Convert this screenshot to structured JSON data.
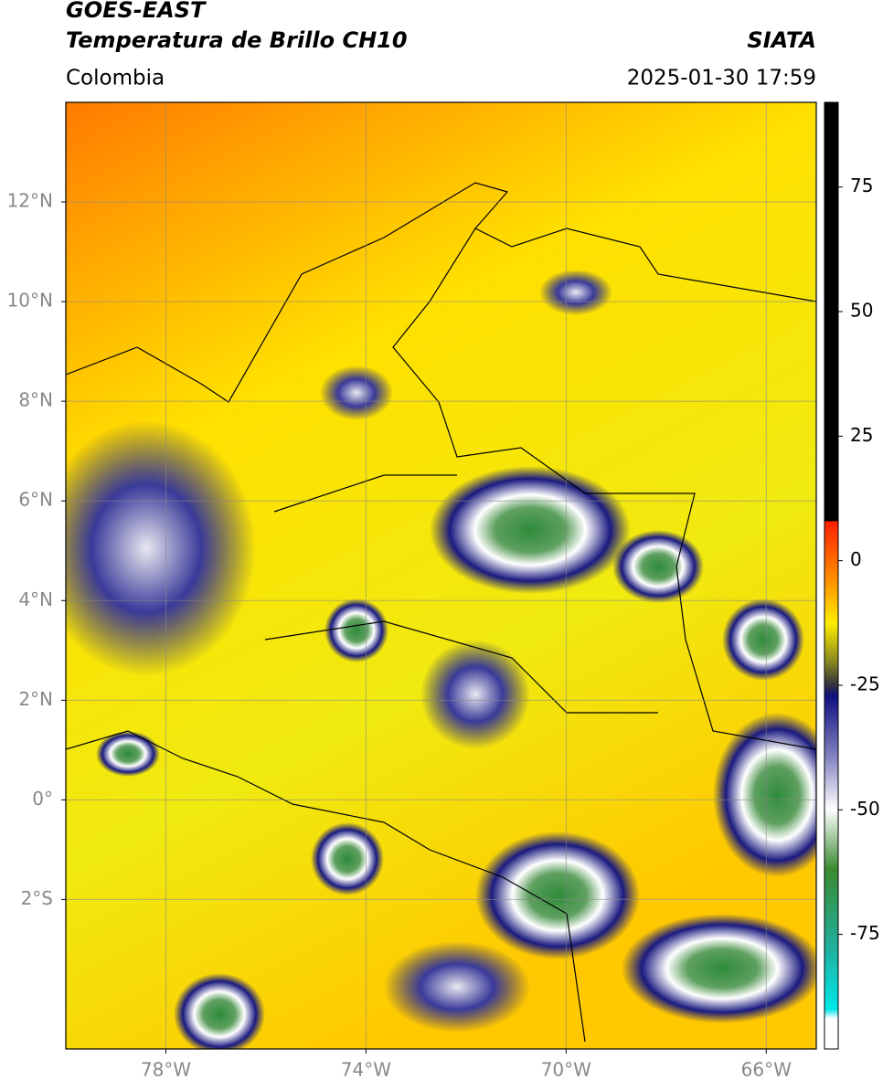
{
  "title": "GOES-EAST",
  "subtitle": "Temperatura de Brillo CH10",
  "source": "SIATA",
  "region": "Colombia",
  "datetime": "2025-01-30 17:59",
  "map": {
    "xlim": [
      -80,
      -65
    ],
    "ylim": [
      -5,
      14
    ],
    "grid": true,
    "xticks": [
      {
        "value": -78,
        "label": "78°W"
      },
      {
        "value": -74,
        "label": "74°W"
      },
      {
        "value": -70,
        "label": "70°W"
      },
      {
        "value": -66,
        "label": "66°W"
      }
    ],
    "yticks": [
      {
        "value": 12,
        "label": "12°N"
      },
      {
        "value": 10,
        "label": "10°N"
      },
      {
        "value": 8,
        "label": "8°N"
      },
      {
        "value": 6,
        "label": "6°N"
      },
      {
        "value": 4,
        "label": "4°N"
      },
      {
        "value": 2,
        "label": "2°N"
      },
      {
        "value": 0,
        "label": "0°"
      },
      {
        "value": -2,
        "label": "2°S"
      }
    ]
  },
  "colorbar": {
    "lim": [
      -98,
      92
    ],
    "ticks": [
      75,
      50,
      25,
      0,
      -25,
      -50,
      -75
    ]
  }
}
